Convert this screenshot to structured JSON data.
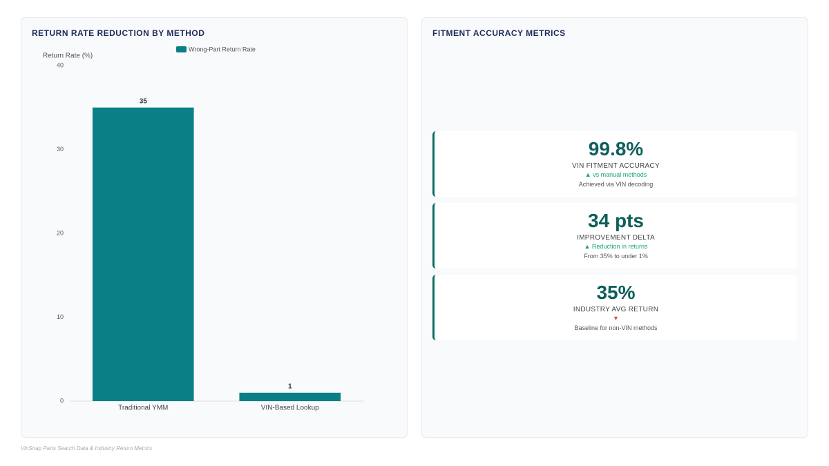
{
  "chart_data": {
    "type": "bar",
    "title": "RETURN RATE REDUCTION BY METHOD",
    "y_label": "Return Rate (%)",
    "categories": [
      "Traditional YMM",
      "VIN-Based Lookup"
    ],
    "series": [
      {
        "name": "Wrong-Part Return Rate",
        "color": "#0a7f86",
        "values": [
          35,
          1
        ]
      }
    ],
    "ylim": [
      0,
      40
    ],
    "yticks": [
      0,
      10,
      20,
      30,
      40
    ],
    "grid": false
  },
  "metrics": {
    "title": "FITMENT ACCURACY METRICS",
    "cards": [
      {
        "value": "99.8%",
        "label": "VIN FITMENT ACCURACY",
        "trend": "▲ vs manual methods",
        "note": "Achieved via VIN decoding"
      },
      {
        "value": "34 pts",
        "label": "IMPROVEMENT DELTA",
        "trend": "▲ Reduction in returns",
        "note": "From 35% to under 1%"
      },
      {
        "value": "35%",
        "label": "INDUSTRY AVG RETURN",
        "trend": "▼",
        "note": "Baseline for non-VIN methods"
      }
    ]
  },
  "footer": {
    "source": "VinSnap Parts Search Data & Industry Return Metrics"
  }
}
